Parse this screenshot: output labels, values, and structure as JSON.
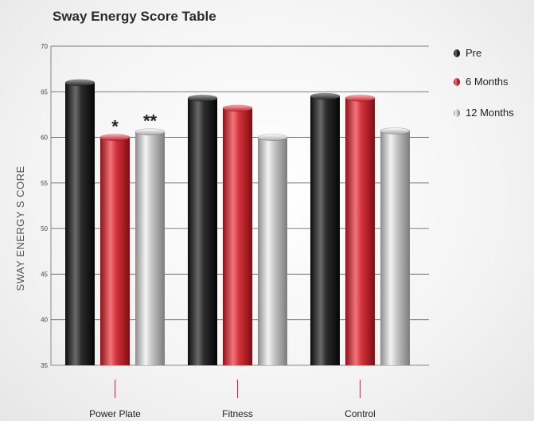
{
  "chart_data": {
    "type": "bar",
    "title": "Sway Energy Score Table",
    "ylabel": "SWAY ENERGY S CORE",
    "xlabel": "",
    "ylim": [
      35,
      70
    ],
    "yticks": [
      "35",
      "40",
      "45",
      "50",
      "55",
      "60",
      "65",
      "70"
    ],
    "categories": [
      "Power Plate",
      "Fitness",
      "Control"
    ],
    "series": [
      {
        "name": "Pre",
        "values": [
          66,
          64.3,
          64.5
        ],
        "color": "#1e1e1e"
      },
      {
        "name": "6 Months",
        "values": [
          60,
          63.2,
          64.3
        ],
        "color": "#c8282e"
      },
      {
        "name": "12 Months",
        "values": [
          60.6,
          60,
          60.7
        ],
        "color": "#b9b9b9"
      }
    ],
    "annotations": [
      {
        "text": "*",
        "category": 0,
        "series": 1
      },
      {
        "text": "**",
        "category": 0,
        "series": 2
      }
    ],
    "grid": true,
    "legend_position": "top-right"
  }
}
